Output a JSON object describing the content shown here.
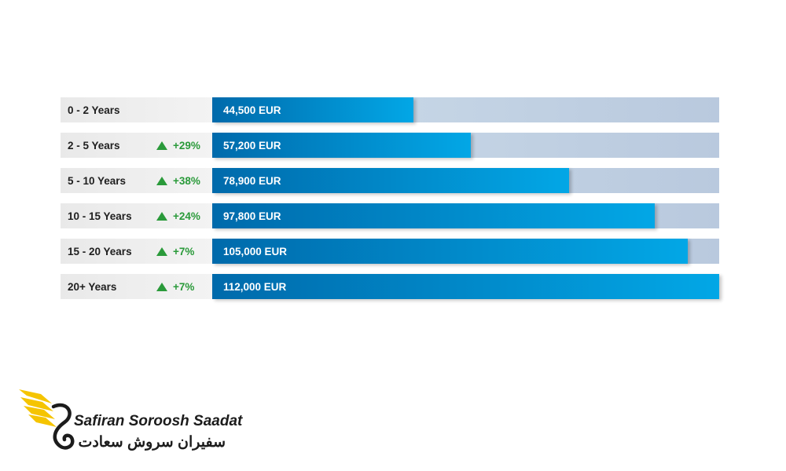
{
  "brand": {
    "name_en": "Safiran Soroosh Saadat",
    "name_fa": "سفیران سروش سعادت",
    "accent_color": "#f5c400"
  },
  "chart_data": {
    "type": "bar",
    "orientation": "horizontal",
    "categories": [
      "0 - 2 Years",
      "2 - 5 Years",
      "5 - 10 Years",
      "10 - 15 Years",
      "15 - 20 Years",
      "20+ Years"
    ],
    "values": [
      44500,
      57200,
      78900,
      97800,
      105000,
      112000
    ],
    "value_labels": [
      "44,500 EUR",
      "57,200 EUR",
      "78,900 EUR",
      "97,800 EUR",
      "105,000 EUR",
      "112,000 EUR"
    ],
    "growth_labels": [
      "",
      "+29%",
      "+38%",
      "+24%",
      "+7%",
      "+7%"
    ],
    "unit": "EUR",
    "xlim": [
      0,
      112000
    ],
    "colors": {
      "bar": "#0088cc",
      "track": "#c3d3e4",
      "growth": "#2a9a3a",
      "label_bg": "#ececec"
    }
  }
}
